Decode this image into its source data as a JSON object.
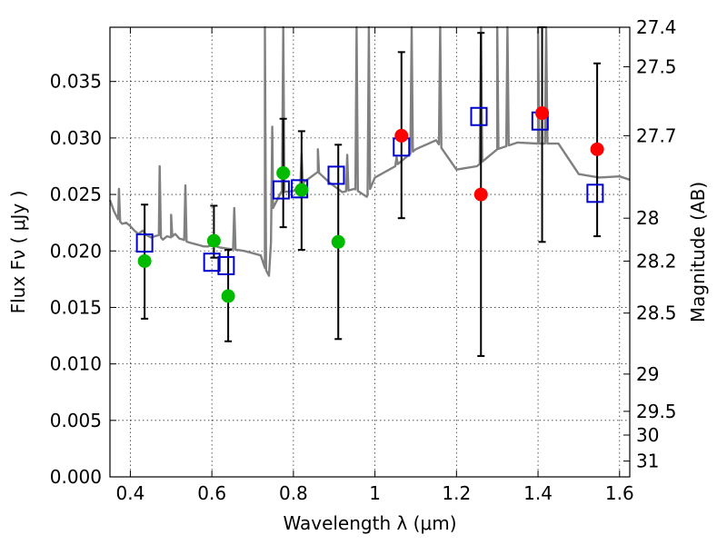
{
  "chart_data": {
    "type": "scatter",
    "title": "",
    "xlabel": "Wavelength  λ (μm)",
    "ylabel": "Flux  Fν  ( μJy )",
    "ylabel_right": "Magnitude (AB)",
    "xlim": [
      0.35,
      1.625
    ],
    "ylim": [
      0.0,
      0.0398
    ],
    "grid": true,
    "x_ticks": [
      0.4,
      0.6,
      0.8,
      1.0,
      1.2,
      1.4,
      1.6
    ],
    "x_tick_labels": [
      "0.4",
      "0.6",
      "0.8",
      "1",
      "1.2",
      "1.4",
      "1.6"
    ],
    "y_ticks": [
      0.0,
      0.005,
      0.01,
      0.015,
      0.02,
      0.025,
      0.03,
      0.035
    ],
    "y_tick_labels": [
      "0.000",
      "0.005",
      "0.010",
      "0.015",
      "0.020",
      "0.025",
      "0.030",
      "0.035"
    ],
    "right_ticks": [
      {
        "label": "27.4",
        "flux": 0.0398
      },
      {
        "label": "27.5",
        "flux": 0.0363
      },
      {
        "label": "27.7",
        "flux": 0.0302
      },
      {
        "label": "28",
        "flux": 0.0229
      },
      {
        "label": "28.2",
        "flux": 0.0191
      },
      {
        "label": "28.5",
        "flux": 0.0145
      },
      {
        "label": "29",
        "flux": 0.0091
      },
      {
        "label": "29.5",
        "flux": 0.0058
      },
      {
        "label": "30",
        "flux": 0.0037
      },
      {
        "label": "31",
        "flux": 0.0014
      }
    ],
    "colors": {
      "spectrum": "#808080",
      "model_box": "#0000cc",
      "green_points": "#00bb00",
      "red_points": "#ff0000",
      "errorbar": "#000000"
    },
    "spectrum": {
      "x": [
        0.35,
        0.36,
        0.37,
        0.38,
        0.39,
        0.4,
        0.41,
        0.42,
        0.43,
        0.44,
        0.45,
        0.46,
        0.47,
        0.48,
        0.49,
        0.5,
        0.51,
        0.52,
        0.53,
        0.54,
        0.55,
        0.56,
        0.57,
        0.58,
        0.59,
        0.6,
        0.62,
        0.64,
        0.66,
        0.68,
        0.7,
        0.72,
        0.73,
        0.74,
        0.75,
        0.77,
        0.8,
        0.83,
        0.86,
        0.89,
        0.92,
        0.95,
        0.98,
        1.0,
        1.05,
        1.1,
        1.15,
        1.2,
        1.25,
        1.3,
        1.35,
        1.4,
        1.45,
        1.5,
        1.55,
        1.6,
        1.625
      ],
      "y": [
        0.0245,
        0.0235,
        0.0228,
        0.0224,
        0.0225,
        0.0222,
        0.0218,
        0.0215,
        0.0218,
        0.0214,
        0.0212,
        0.0213,
        0.0214,
        0.021,
        0.0213,
        0.0212,
        0.0215,
        0.0211,
        0.021,
        0.0208,
        0.0207,
        0.0206,
        0.0205,
        0.0204,
        0.0204,
        0.0205,
        0.0203,
        0.0202,
        0.0201,
        0.02,
        0.0198,
        0.0196,
        0.0185,
        0.0178,
        0.0238,
        0.0252,
        0.0253,
        0.0262,
        0.027,
        0.026,
        0.0252,
        0.0255,
        0.0248,
        0.0265,
        0.0275,
        0.029,
        0.0298,
        0.0272,
        0.0275,
        0.029,
        0.0296,
        0.0295,
        0.0295,
        0.0268,
        0.0265,
        0.0266,
        0.0263
      ],
      "emission_lines": [
        {
          "x": 0.372,
          "peak": 0.0255
        },
        {
          "x": 0.472,
          "peak": 0.0275
        },
        {
          "x": 0.5,
          "peak": 0.0232
        },
        {
          "x": 0.535,
          "peak": 0.0258
        },
        {
          "x": 0.655,
          "peak": 0.0238
        },
        {
          "x": 0.73,
          "peak": 0.0398
        },
        {
          "x": 0.748,
          "peak": 0.031
        },
        {
          "x": 0.775,
          "peak": 0.0398
        },
        {
          "x": 0.82,
          "peak": 0.0286
        },
        {
          "x": 0.86,
          "peak": 0.029
        },
        {
          "x": 0.932,
          "peak": 0.0285
        },
        {
          "x": 0.955,
          "peak": 0.0398
        },
        {
          "x": 0.985,
          "peak": 0.0398
        },
        {
          "x": 1.053,
          "peak": 0.0283
        },
        {
          "x": 1.09,
          "peak": 0.0398
        },
        {
          "x": 1.16,
          "peak": 0.0398
        },
        {
          "x": 1.26,
          "peak": 0.0398
        },
        {
          "x": 1.3,
          "peak": 0.0398
        },
        {
          "x": 1.325,
          "peak": 0.0398
        },
        {
          "x": 1.4,
          "peak": 0.0398
        },
        {
          "x": 1.42,
          "peak": 0.0398
        }
      ]
    },
    "model_boxes": [
      {
        "x": 0.435,
        "y": 0.0207
      },
      {
        "x": 0.6,
        "y": 0.019
      },
      {
        "x": 0.635,
        "y": 0.0187
      },
      {
        "x": 0.77,
        "y": 0.0254
      },
      {
        "x": 0.815,
        "y": 0.0255
      },
      {
        "x": 0.905,
        "y": 0.0267
      },
      {
        "x": 1.065,
        "y": 0.0292
      },
      {
        "x": 1.255,
        "y": 0.0319
      },
      {
        "x": 1.405,
        "y": 0.0315
      },
      {
        "x": 1.54,
        "y": 0.0251
      }
    ],
    "observed_points": [
      {
        "x": 0.435,
        "y": 0.0191,
        "color": "green",
        "err_low": 0.014,
        "err_high": 0.0241
      },
      {
        "x": 0.605,
        "y": 0.0209,
        "color": "green",
        "err_low": 0.0194,
        "err_high": 0.024
      },
      {
        "x": 0.64,
        "y": 0.016,
        "color": "green",
        "err_low": 0.012,
        "err_high": 0.0201
      },
      {
        "x": 0.775,
        "y": 0.0269,
        "color": "green",
        "err_low": 0.0221,
        "err_high": 0.0317
      },
      {
        "x": 0.82,
        "y": 0.0254,
        "color": "green",
        "err_low": 0.0201,
        "err_high": 0.0306
      },
      {
        "x": 0.91,
        "y": 0.0208,
        "color": "green",
        "err_low": 0.0122,
        "err_high": 0.0294
      },
      {
        "x": 1.065,
        "y": 0.0302,
        "color": "red",
        "err_low": 0.0229,
        "err_high": 0.0376
      },
      {
        "x": 1.26,
        "y": 0.025,
        "color": "red",
        "err_low": 0.0107,
        "err_high": 0.0393
      },
      {
        "x": 1.41,
        "y": 0.0322,
        "color": "red",
        "err_low": 0.0208,
        "err_high": 0.0398
      },
      {
        "x": 1.545,
        "y": 0.029,
        "color": "red",
        "err_low": 0.0213,
        "err_high": 0.0366
      }
    ]
  }
}
